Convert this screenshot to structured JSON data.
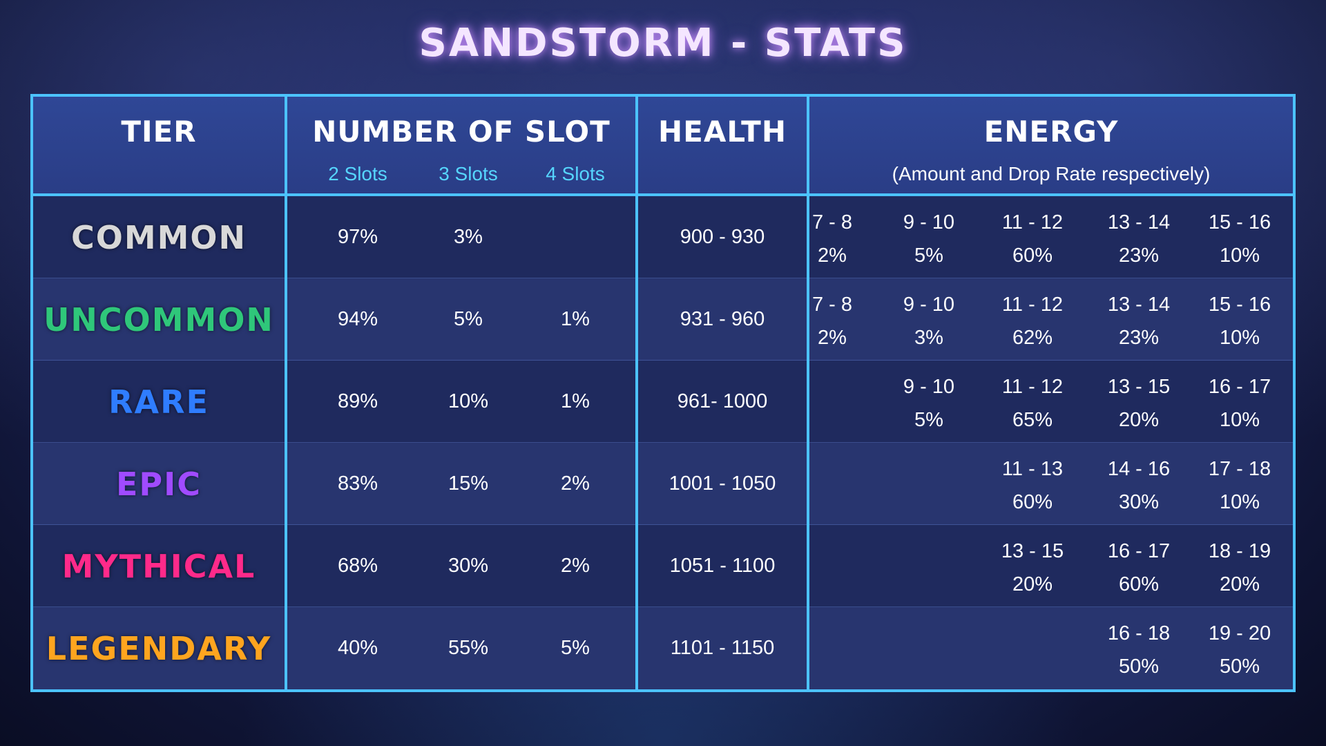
{
  "title": "SANDSTORM - STATS",
  "header": {
    "tier": "TIER",
    "slots": "NUMBER OF SLOT",
    "slot_cols": [
      "2 Slots",
      "3 Slots",
      "4 Slots"
    ],
    "health": "HEALTH",
    "energy": "ENERGY",
    "energy_note": "(Amount and Drop Rate respectively)"
  },
  "colors": {
    "border": "#4cc3ff",
    "common": "#d8d8d8",
    "uncommon": "#2fc77a",
    "rare": "#2f7dff",
    "epic": "#a04bff",
    "mythical": "#ff2a8a",
    "legendary": "#ffa51f"
  },
  "rows": [
    {
      "tier": "COMMON",
      "slots": [
        "97%",
        "3%",
        ""
      ],
      "health": "900 - 930",
      "energy": [
        {
          "range": "7 - 8",
          "rate": "2%"
        },
        {
          "range": "9 - 10",
          "rate": "5%"
        },
        {
          "range": "11 - 12",
          "rate": "60%"
        },
        {
          "range": "13 - 14",
          "rate": "23%"
        },
        {
          "range": "15 - 16",
          "rate": "10%"
        }
      ]
    },
    {
      "tier": "UNCOMMON",
      "slots": [
        "94%",
        "5%",
        "1%"
      ],
      "health": "931 - 960",
      "energy": [
        {
          "range": "7 - 8",
          "rate": "2%"
        },
        {
          "range": "9 - 10",
          "rate": "3%"
        },
        {
          "range": "11 - 12",
          "rate": "62%"
        },
        {
          "range": "13 - 14",
          "rate": "23%"
        },
        {
          "range": "15 - 16",
          "rate": "10%"
        }
      ]
    },
    {
      "tier": "RARE",
      "slots": [
        "89%",
        "10%",
        "1%"
      ],
      "health": "961- 1000",
      "energy": [
        {
          "range": "",
          "rate": ""
        },
        {
          "range": "9 - 10",
          "rate": "5%"
        },
        {
          "range": "11 - 12",
          "rate": "65%"
        },
        {
          "range": "13 - 15",
          "rate": "20%"
        },
        {
          "range": "16 - 17",
          "rate": "10%"
        }
      ]
    },
    {
      "tier": "EPIC",
      "slots": [
        "83%",
        "15%",
        "2%"
      ],
      "health": "1001 - 1050",
      "energy": [
        {
          "range": "",
          "rate": ""
        },
        {
          "range": "",
          "rate": ""
        },
        {
          "range": "11 - 13",
          "rate": "60%"
        },
        {
          "range": "14 - 16",
          "rate": "30%"
        },
        {
          "range": "17 - 18",
          "rate": "10%"
        }
      ]
    },
    {
      "tier": "MYTHICAL",
      "slots": [
        "68%",
        "30%",
        "2%"
      ],
      "health": "1051 - 1100",
      "energy": [
        {
          "range": "",
          "rate": ""
        },
        {
          "range": "",
          "rate": ""
        },
        {
          "range": "13 - 15",
          "rate": "20%"
        },
        {
          "range": "16 - 17",
          "rate": "60%"
        },
        {
          "range": "18 - 19",
          "rate": "20%"
        }
      ]
    },
    {
      "tier": "LEGENDARY",
      "slots": [
        "40%",
        "55%",
        "5%"
      ],
      "health": "1101 - 1150",
      "energy": [
        {
          "range": "",
          "rate": ""
        },
        {
          "range": "",
          "rate": ""
        },
        {
          "range": "",
          "rate": ""
        },
        {
          "range": "16 - 18",
          "rate": "50%"
        },
        {
          "range": "19 - 20",
          "rate": "50%"
        }
      ]
    }
  ]
}
